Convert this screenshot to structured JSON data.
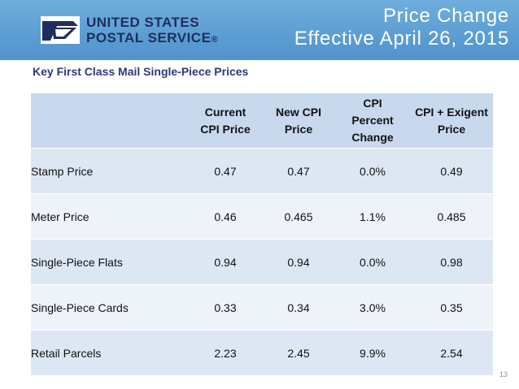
{
  "header": {
    "logo_line1": "UNITED STATES",
    "logo_line2": "POSTAL SERVICE",
    "logo_mark": "®",
    "title_line1": "Price Change",
    "title_line2": "Effective April 26, 2015"
  },
  "subtitle": "Key First Class Mail Single-Piece Prices",
  "table": {
    "columns": [
      "",
      "Current CPI Price",
      "New CPI Price",
      "CPI Percent Change",
      "CPI + Exigent Price"
    ],
    "rows": [
      {
        "label": "Stamp Price",
        "current": "0.47",
        "new": "0.47",
        "percent": "0.0%",
        "exigent": "0.49"
      },
      {
        "label": "Meter Price",
        "current": "0.46",
        "new": "0.465",
        "percent": "1.1%",
        "exigent": "0.485"
      },
      {
        "label": "Single-Piece Flats",
        "current": "0.94",
        "new": "0.94",
        "percent": "0.0%",
        "exigent": "0.98"
      },
      {
        "label": "Single-Piece Cards",
        "current": "0.33",
        "new": "0.34",
        "percent": "3.0%",
        "exigent": "0.35"
      },
      {
        "label": "Retail Parcels",
        "current": "2.23",
        "new": "2.45",
        "percent": "9.9%",
        "exigent": "2.54"
      }
    ]
  },
  "page_number": "13",
  "colors": {
    "header_blue": "#4f93cc",
    "logo_navy": "#1f2d5c",
    "subtitle": "#2a3a7a"
  },
  "icons": {
    "logo": "usps-eagle-icon"
  }
}
